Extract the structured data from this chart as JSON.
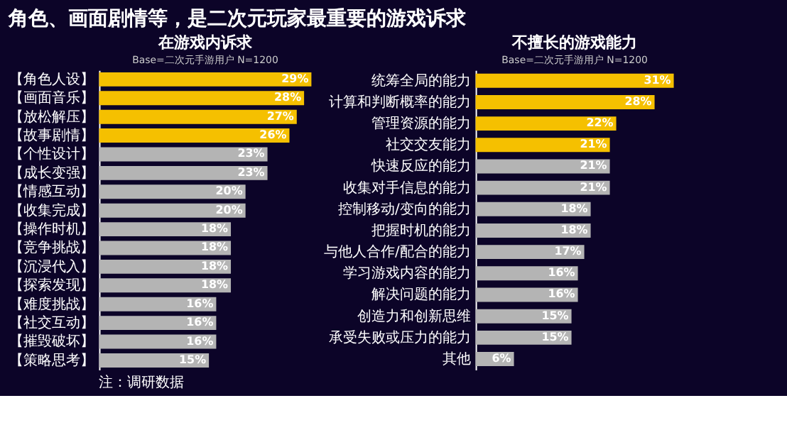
{
  "chart_data": [
    {
      "type": "bar",
      "orientation": "horizontal",
      "title": "在游戏内诉求",
      "subtitle": "Base=二次元手游用户 N=1200",
      "annotations": [
        "角色、画面剧情等，是二次元玩家最重要的游戏诉求",
        "注：调研数据"
      ],
      "categories": [
        "【角色人设】",
        "【画面音乐】",
        "【放松解压】",
        "【故事剧情】",
        "【个性设计】",
        "【成长变强】",
        "【情感互动】",
        "【收集完成】",
        "【操作时机】",
        "【竞争挑战】",
        "【沉浸代入】",
        "【探索发现】",
        "【难度挑战】",
        "【社交互动】",
        "【摧毁破坏】",
        "【策略思考】"
      ],
      "values": [
        29,
        28,
        27,
        26,
        23,
        23,
        20,
        20,
        18,
        18,
        18,
        18,
        16,
        16,
        16,
        15
      ],
      "value_labels": [
        "29%",
        "28%",
        "27%",
        "26%",
        "23%",
        "23%",
        "20%",
        "20%",
        "18%",
        "18%",
        "18%",
        "18%",
        "16%",
        "16%",
        "16%",
        "15%"
      ],
      "colors": [
        "#f5c000",
        "#f5c000",
        "#f5c000",
        "#f5c000",
        "#b4b4b4",
        "#b4b4b4",
        "#b4b4b4",
        "#b4b4b4",
        "#b4b4b4",
        "#b4b4b4",
        "#b4b4b4",
        "#b4b4b4",
        "#b4b4b4",
        "#b4b4b4",
        "#b4b4b4",
        "#b4b4b4"
      ]
    },
    {
      "type": "bar",
      "orientation": "horizontal",
      "title": "不擅长的游戏能力",
      "subtitle": "Base=二次元手游用户 N=1200",
      "categories": [
        "统筹全局的能力",
        "计算和判断概率的能力",
        "管理资源的能力",
        "社交交友能力",
        "快速反应的能力",
        "收集对手信息的能力",
        "控制移动/变向的能力",
        "把握时机的能力",
        "与他人合作/配合的能力",
        "学习游戏内容的能力",
        "解决问题的能力",
        "创造力和创新思维",
        "承受失败或压力的能力",
        "其他"
      ],
      "values": [
        31,
        28,
        22,
        21,
        21,
        21,
        18,
        18,
        17,
        16,
        16,
        15,
        15,
        6
      ],
      "value_labels": [
        "31%",
        "28%",
        "22%",
        "21%",
        "21%",
        "21%",
        "18%",
        "18%",
        "17%",
        "16%",
        "16%",
        "15%",
        "15%",
        "6%"
      ],
      "colors": [
        "#f5c000",
        "#f5c000",
        "#f5c000",
        "#f5c000",
        "#b4b4b4",
        "#b4b4b4",
        "#b4b4b4",
        "#b4b4b4",
        "#b4b4b4",
        "#b4b4b4",
        "#b4b4b4",
        "#b4b4b4",
        "#b4b4b4",
        "#b4b4b4"
      ]
    }
  ]
}
